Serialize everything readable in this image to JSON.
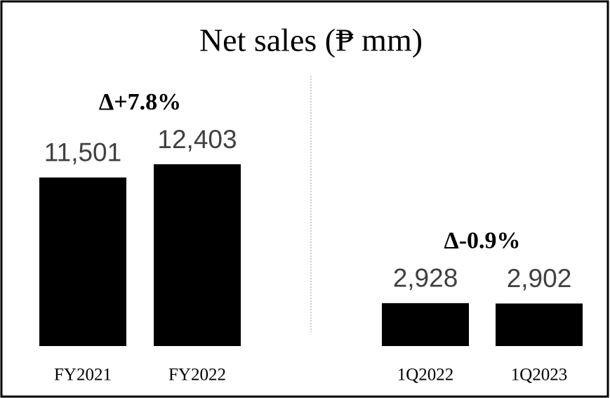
{
  "chart_data": {
    "type": "bar",
    "title": "Net sales (₱ mm)",
    "categories": [
      "FY2021",
      "FY2022",
      "1Q2022",
      "1Q2023"
    ],
    "values": [
      11501,
      12403,
      2928,
      2902
    ],
    "value_labels": [
      "11,501",
      "12,403",
      "2,928",
      "2,902"
    ],
    "color": "#000000",
    "annotations": [
      "Δ+7.8%",
      "Δ-0.9%"
    ]
  }
}
